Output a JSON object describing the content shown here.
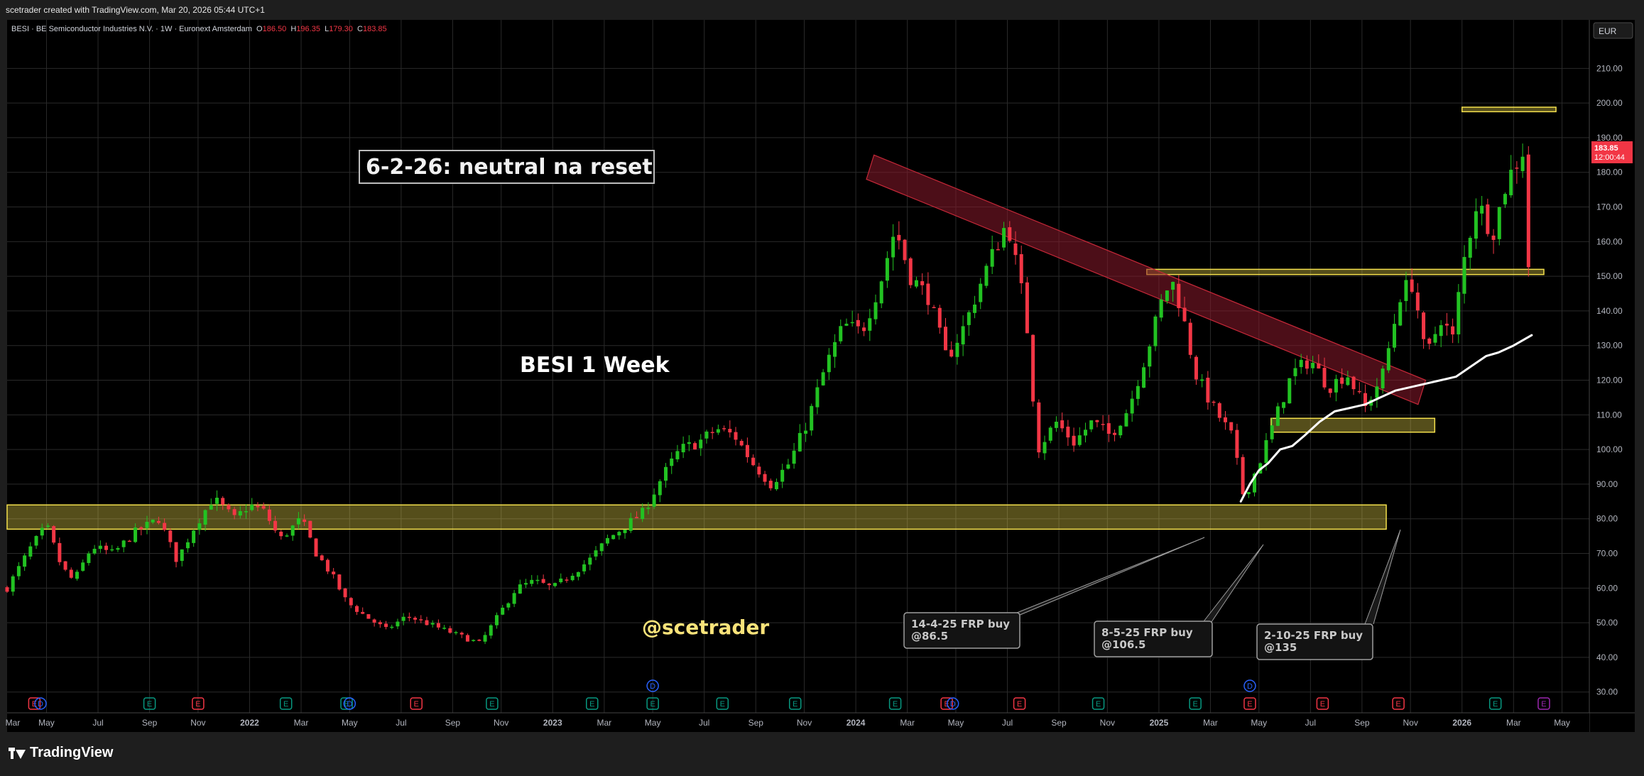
{
  "header": {
    "caption": "scetrader created with TradingView.com, Mar 20, 2026 05:44 UTC+1"
  },
  "legend": {
    "symbol": "BESI · BE Semiconductor Industries N.V. · 1W · Euronext Amsterdam",
    "open_label": "O",
    "open": "186.50",
    "high_label": "H",
    "high": "196.35",
    "low_label": "L",
    "low": "179.30",
    "close_label": "C",
    "close": "183.85"
  },
  "annotations": {
    "title_box": "6-2-26: neutral na reset",
    "chart_label": "BESI 1 Week",
    "watermark": "@scetrader",
    "callouts": [
      {
        "line1": "14-4-25 FRP buy",
        "line2": "@86.5"
      },
      {
        "line1": "8-5-25 FRP buy",
        "line2": "@106.5"
      },
      {
        "line1": "2-10-25 FRP buy",
        "line2": "@135"
      }
    ]
  },
  "price_scale": {
    "currency": "EUR",
    "last_price": "183.85",
    "countdown": "12:00:44"
  },
  "footer": {
    "brand": "TradingView"
  },
  "colors": {
    "up": "#22c222",
    "down": "#f23645",
    "zone": "#f4e04d",
    "channel": "#8b1a2b",
    "background": "#000000"
  },
  "chart_data": {
    "type": "candlestick",
    "interval": "1W",
    "currency": "EUR",
    "ylim": [
      24,
      224
    ],
    "y_ticks": [
      30,
      40,
      50,
      60,
      70,
      80,
      90,
      100,
      110,
      120,
      130,
      140,
      150,
      160,
      170,
      180,
      190,
      200,
      210
    ],
    "x_range": [
      2021.2,
      2026.42
    ],
    "x_ticks": [
      {
        "label": "Mar",
        "t": 2021.17
      },
      {
        "label": "May",
        "t": 2021.33
      },
      {
        "label": "Jul",
        "t": 2021.5
      },
      {
        "label": "Sep",
        "t": 2021.67
      },
      {
        "label": "Nov",
        "t": 2021.83
      },
      {
        "label": "2022",
        "t": 2022.0,
        "bold": true
      },
      {
        "label": "Mar",
        "t": 2022.17
      },
      {
        "label": "May",
        "t": 2022.33
      },
      {
        "label": "Jul",
        "t": 2022.5
      },
      {
        "label": "Sep",
        "t": 2022.67
      },
      {
        "label": "Nov",
        "t": 2022.83
      },
      {
        "label": "2023",
        "t": 2023.0,
        "bold": true
      },
      {
        "label": "Mar",
        "t": 2023.17
      },
      {
        "label": "May",
        "t": 2023.33
      },
      {
        "label": "Jul",
        "t": 2023.5
      },
      {
        "label": "Sep",
        "t": 2023.67
      },
      {
        "label": "Nov",
        "t": 2023.83
      },
      {
        "label": "2024",
        "t": 2024.0,
        "bold": true
      },
      {
        "label": "Mar",
        "t": 2024.17
      },
      {
        "label": "May",
        "t": 2024.33
      },
      {
        "label": "Jul",
        "t": 2024.5
      },
      {
        "label": "Sep",
        "t": 2024.67
      },
      {
        "label": "Nov",
        "t": 2024.83
      },
      {
        "label": "2025",
        "t": 2025.0,
        "bold": true
      },
      {
        "label": "Mar",
        "t": 2025.17
      },
      {
        "label": "May",
        "t": 2025.33
      },
      {
        "label": "Jul",
        "t": 2025.5
      },
      {
        "label": "Sep",
        "t": 2025.67
      },
      {
        "label": "Nov",
        "t": 2025.83
      },
      {
        "label": "2026",
        "t": 2026.0,
        "bold": true
      },
      {
        "label": "Mar",
        "t": 2026.17
      },
      {
        "label": "May",
        "t": 2026.33
      }
    ],
    "price_path": [
      [
        2021.2,
        60
      ],
      [
        2021.28,
        72
      ],
      [
        2021.33,
        78
      ],
      [
        2021.38,
        66
      ],
      [
        2021.42,
        62
      ],
      [
        2021.48,
        72
      ],
      [
        2021.55,
        70
      ],
      [
        2021.62,
        76
      ],
      [
        2021.7,
        80
      ],
      [
        2021.76,
        68
      ],
      [
        2021.82,
        78
      ],
      [
        2021.88,
        86
      ],
      [
        2021.95,
        80
      ],
      [
        2022.0,
        84
      ],
      [
        2022.05,
        82
      ],
      [
        2022.1,
        74
      ],
      [
        2022.17,
        80
      ],
      [
        2022.22,
        70
      ],
      [
        2022.27,
        64
      ],
      [
        2022.32,
        56
      ],
      [
        2022.38,
        52
      ],
      [
        2022.45,
        48
      ],
      [
        2022.52,
        52
      ],
      [
        2022.58,
        50
      ],
      [
        2022.64,
        48
      ],
      [
        2022.7,
        46
      ],
      [
        2022.76,
        44
      ],
      [
        2022.82,
        52
      ],
      [
        2022.88,
        60
      ],
      [
        2022.94,
        62
      ],
      [
        2023.0,
        60
      ],
      [
        2023.06,
        64
      ],
      [
        2023.12,
        68
      ],
      [
        2023.18,
        74
      ],
      [
        2023.24,
        78
      ],
      [
        2023.3,
        82
      ],
      [
        2023.36,
        92
      ],
      [
        2023.42,
        100
      ],
      [
        2023.48,
        102
      ],
      [
        2023.54,
        106
      ],
      [
        2023.6,
        104
      ],
      [
        2023.66,
        96
      ],
      [
        2023.72,
        90
      ],
      [
        2023.78,
        96
      ],
      [
        2023.84,
        108
      ],
      [
        2023.9,
        124
      ],
      [
        2023.96,
        136
      ],
      [
        2024.02,
        134
      ],
      [
        2024.08,
        148
      ],
      [
        2024.13,
        164
      ],
      [
        2024.18,
        150
      ],
      [
        2024.24,
        144
      ],
      [
        2024.3,
        126
      ],
      [
        2024.36,
        136
      ],
      [
        2024.42,
        150
      ],
      [
        2024.47,
        160
      ],
      [
        2024.5,
        166
      ],
      [
        2024.56,
        140
      ],
      [
        2024.6,
        100
      ],
      [
        2024.66,
        108
      ],
      [
        2024.72,
        102
      ],
      [
        2024.78,
        108
      ],
      [
        2024.84,
        104
      ],
      [
        2024.9,
        112
      ],
      [
        2024.96,
        128
      ],
      [
        2025.02,
        146
      ],
      [
        2025.05,
        148
      ],
      [
        2025.08,
        138
      ],
      [
        2025.12,
        122
      ],
      [
        2025.18,
        112
      ],
      [
        2025.24,
        104
      ],
      [
        2025.28,
        86
      ],
      [
        2025.33,
        96
      ],
      [
        2025.38,
        108
      ],
      [
        2025.44,
        122
      ],
      [
        2025.5,
        126
      ],
      [
        2025.56,
        118
      ],
      [
        2025.62,
        122
      ],
      [
        2025.68,
        112
      ],
      [
        2025.74,
        122
      ],
      [
        2025.8,
        146
      ],
      [
        2025.84,
        148
      ],
      [
        2025.88,
        126
      ],
      [
        2025.93,
        138
      ],
      [
        2025.97,
        132
      ],
      [
        2026.0,
        152
      ],
      [
        2026.05,
        172
      ],
      [
        2026.1,
        162
      ],
      [
        2026.15,
        178
      ],
      [
        2026.2,
        186
      ],
      [
        2026.22,
        152
      ],
      [
        2026.24,
        186
      ]
    ],
    "frp_line": [
      [
        2025.27,
        85
      ],
      [
        2025.3,
        90
      ],
      [
        2025.33,
        94
      ],
      [
        2025.36,
        96
      ],
      [
        2025.4,
        100
      ],
      [
        2025.44,
        101
      ],
      [
        2025.48,
        104
      ],
      [
        2025.53,
        108
      ],
      [
        2025.58,
        111
      ],
      [
        2025.63,
        112
      ],
      [
        2025.68,
        113
      ],
      [
        2025.73,
        115
      ],
      [
        2025.78,
        117
      ],
      [
        2025.83,
        118
      ],
      [
        2025.88,
        119
      ],
      [
        2025.93,
        120
      ],
      [
        2025.98,
        121
      ],
      [
        2026.03,
        124
      ],
      [
        2026.08,
        127
      ],
      [
        2026.12,
        128
      ],
      [
        2026.17,
        130
      ],
      [
        2026.23,
        133
      ]
    ],
    "zones": [
      {
        "name": "support",
        "t1": 2021.2,
        "t2": 2025.75,
        "y1": 77,
        "y2": 84
      },
      {
        "name": "mid-zone",
        "t1": 2025.37,
        "t2": 2025.91,
        "y1": 105,
        "y2": 109
      },
      {
        "name": "resistance-150",
        "t1": 2024.96,
        "t2": 2026.27,
        "y1": 150.5,
        "y2": 152
      },
      {
        "name": "resistance-198",
        "t1": 2026.0,
        "t2": 2026.31,
        "y1": 197.5,
        "y2": 198.8
      }
    ],
    "channel": {
      "t_start": 2024.06,
      "y_top_start": 185,
      "t_end": 2025.88,
      "y_top_end": 120,
      "height": 7
    },
    "events": [
      {
        "label": "E",
        "t": 2021.29,
        "color": "#f23645"
      },
      {
        "label": "D",
        "t": 2021.31,
        "color": "#2962ff",
        "ring": true
      },
      {
        "label": "E",
        "t": 2021.67,
        "color": "#089981"
      },
      {
        "label": "E",
        "t": 2021.83,
        "color": "#f23645"
      },
      {
        "label": "E",
        "t": 2022.12,
        "color": "#089981"
      },
      {
        "label": "E",
        "t": 2022.32,
        "color": "#089981"
      },
      {
        "label": "D",
        "t": 2022.33,
        "color": "#2962ff",
        "ring": true
      },
      {
        "label": "E",
        "t": 2022.55,
        "color": "#f23645"
      },
      {
        "label": "E",
        "t": 2022.8,
        "color": "#089981"
      },
      {
        "label": "E",
        "t": 2023.13,
        "color": "#089981"
      },
      {
        "label": "E",
        "t": 2023.33,
        "color": "#089981"
      },
      {
        "label": "E",
        "t": 2023.56,
        "color": "#089981"
      },
      {
        "label": "E",
        "t": 2023.8,
        "color": "#089981"
      },
      {
        "label": "E",
        "t": 2024.13,
        "color": "#089981"
      },
      {
        "label": "E",
        "t": 2024.3,
        "color": "#f23645"
      },
      {
        "label": "D",
        "t": 2024.32,
        "color": "#2962ff",
        "ring": true
      },
      {
        "label": "E",
        "t": 2024.54,
        "color": "#f23645"
      },
      {
        "label": "E",
        "t": 2024.8,
        "color": "#089981"
      },
      {
        "label": "E",
        "t": 2025.12,
        "color": "#089981"
      },
      {
        "label": "E",
        "t": 2025.3,
        "color": "#f23645"
      },
      {
        "label": "E",
        "t": 2025.54,
        "color": "#f23645"
      },
      {
        "label": "E",
        "t": 2025.79,
        "color": "#f23645"
      },
      {
        "label": "E",
        "t": 2026.11,
        "color": "#089981"
      },
      {
        "label": "E",
        "t": 2026.27,
        "color": "#9c27b0"
      }
    ],
    "dividends": [
      {
        "label": "D",
        "t": 2023.33
      },
      {
        "label": "D",
        "t": 2025.3
      }
    ]
  }
}
